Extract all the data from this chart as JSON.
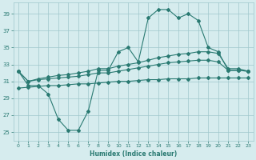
{
  "x": [
    0,
    1,
    2,
    3,
    4,
    5,
    6,
    7,
    8,
    9,
    10,
    11,
    12,
    13,
    14,
    15,
    16,
    17,
    18,
    19,
    20,
    21,
    22,
    23
  ],
  "line_humidex": [
    32.2,
    30.5,
    30.5,
    29.5,
    26.5,
    25.2,
    25.2,
    27.5,
    32.3,
    32.3,
    34.5,
    35.0,
    33.3,
    38.5,
    39.5,
    39.5,
    38.5,
    39.0,
    38.2,
    35.0,
    34.5,
    32.3,
    32.3,
    32.2
  ],
  "line_upper": [
    32.2,
    31.0,
    31.3,
    31.5,
    31.7,
    31.8,
    32.0,
    32.2,
    32.5,
    32.5,
    32.8,
    33.0,
    33.2,
    33.5,
    33.8,
    34.0,
    34.2,
    34.3,
    34.5,
    34.5,
    34.3,
    32.5,
    32.5,
    32.2
  ],
  "line_mid": [
    32.2,
    31.0,
    31.2,
    31.3,
    31.4,
    31.5,
    31.6,
    31.8,
    32.0,
    32.0,
    32.2,
    32.4,
    32.6,
    32.8,
    33.0,
    33.2,
    33.3,
    33.4,
    33.5,
    33.5,
    33.3,
    32.3,
    32.3,
    32.2
  ],
  "line_lower": [
    30.2,
    30.3,
    30.4,
    30.5,
    30.5,
    30.6,
    30.7,
    30.7,
    30.8,
    30.9,
    31.0,
    31.0,
    31.1,
    31.2,
    31.2,
    31.3,
    31.3,
    31.3,
    31.4,
    31.4,
    31.4,
    31.4,
    31.4,
    31.4
  ],
  "color": "#2a7a72",
  "bg_color": "#d6ecee",
  "grid_color": "#9ec8cc",
  "xlabel": "Humidex (Indice chaleur)",
  "ylim": [
    24,
    40
  ],
  "yticks": [
    25,
    27,
    29,
    31,
    33,
    35,
    37,
    39
  ],
  "xlim_min": -0.5,
  "xlim_max": 23.5,
  "xticks": [
    0,
    1,
    2,
    3,
    4,
    5,
    6,
    7,
    8,
    9,
    10,
    11,
    12,
    13,
    14,
    15,
    16,
    17,
    18,
    19,
    20,
    21,
    22,
    23
  ]
}
